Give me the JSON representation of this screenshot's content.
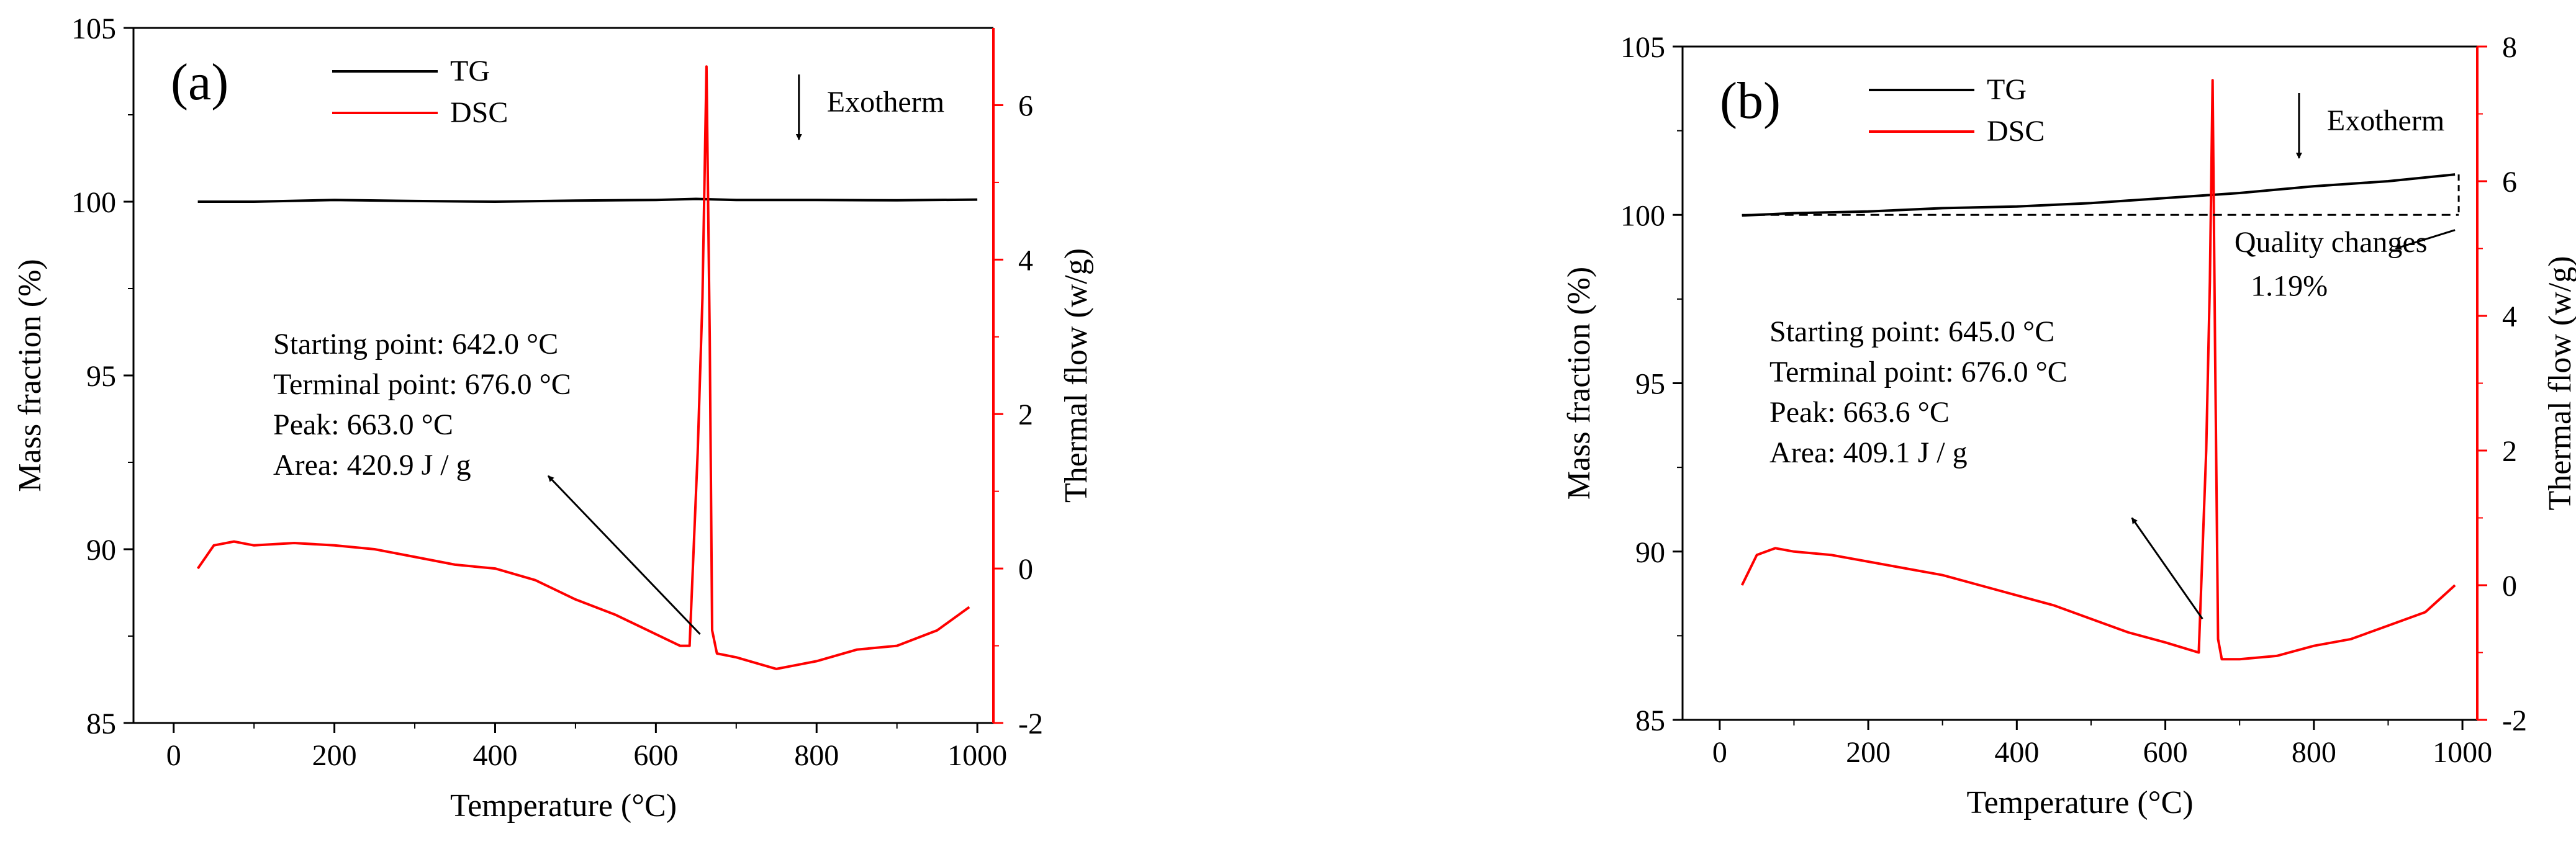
{
  "colors": {
    "tg": "#000000",
    "dsc": "#ff0000",
    "axis": "#000000"
  },
  "chart_data": [
    {
      "type": "line",
      "panel_label": "(a)",
      "xlabel": "Temperature (°C)",
      "ylabel_left": "Mass fraction (%)",
      "ylabel_right": "Thermal flow (w/g)",
      "xlim": [
        -50,
        1020
      ],
      "ylim_left": [
        85,
        105
      ],
      "ylim_right": [
        -2,
        7
      ],
      "xticks": [
        0,
        200,
        400,
        600,
        800,
        1000
      ],
      "yticks_left": [
        85,
        90,
        95,
        100,
        105
      ],
      "yticks_right": [
        -2,
        0,
        2,
        4,
        6
      ],
      "legend": [
        "TG",
        "DSC"
      ],
      "exotherm_label": "Exotherm",
      "annotation": [
        "Starting point: 642.0 °C",
        "Terminal point: 676.0 °C",
        "Peak: 663.0 °C",
        "Area: 420.9 J / g"
      ],
      "series": [
        {
          "name": "TG",
          "axis": "left",
          "x": [
            30,
            100,
            200,
            300,
            400,
            500,
            600,
            650,
            700,
            800,
            900,
            1000
          ],
          "y": [
            100.0,
            100.0,
            100.05,
            100.02,
            100.0,
            100.03,
            100.05,
            100.08,
            100.05,
            100.05,
            100.04,
            100.06
          ]
        },
        {
          "name": "DSC",
          "axis": "right",
          "x": [
            30,
            50,
            75,
            100,
            150,
            200,
            250,
            300,
            350,
            400,
            450,
            500,
            550,
            600,
            630,
            642,
            652,
            658,
            663,
            667,
            670,
            676,
            700,
            750,
            800,
            850,
            900,
            950,
            990
          ],
          "y": [
            0.0,
            0.3,
            0.35,
            0.3,
            0.33,
            0.3,
            0.25,
            0.15,
            0.05,
            0.0,
            -0.15,
            -0.4,
            -0.6,
            -0.85,
            -1.0,
            -1.0,
            1.5,
            3.5,
            6.5,
            3.0,
            -0.8,
            -1.1,
            -1.15,
            -1.3,
            -1.2,
            -1.05,
            -1.0,
            -0.8,
            -0.5
          ]
        }
      ]
    },
    {
      "type": "line",
      "panel_label": "(b)",
      "xlabel": "Temperature (°C)",
      "ylabel_left": "Mass fraction (%)",
      "ylabel_right": "Thermal flow (w/g)",
      "xlim": [
        -50,
        1020
      ],
      "ylim_left": [
        85,
        105
      ],
      "ylim_right": [
        -2,
        8
      ],
      "xticks": [
        0,
        200,
        400,
        600,
        800,
        1000
      ],
      "yticks_left": [
        85,
        90,
        95,
        100,
        105
      ],
      "yticks_right": [
        -2,
        0,
        2,
        4,
        6,
        8
      ],
      "legend": [
        "TG",
        "DSC"
      ],
      "exotherm_label": "Exotherm",
      "quality_label": [
        "Quality changes",
        "1.19%"
      ],
      "annotation": [
        "Starting point: 645.0 °C",
        "Terminal point: 676.0 °C",
        "Peak: 663.6 °C",
        "Area: 409.1 J / g"
      ],
      "series": [
        {
          "name": "TG",
          "axis": "left",
          "x": [
            30,
            100,
            200,
            300,
            400,
            500,
            600,
            700,
            800,
            900,
            990
          ],
          "y": [
            99.98,
            100.05,
            100.1,
            100.2,
            100.25,
            100.35,
            100.5,
            100.65,
            100.85,
            101.0,
            101.2
          ]
        },
        {
          "name": "DSC",
          "axis": "right",
          "x": [
            30,
            50,
            75,
            100,
            150,
            200,
            250,
            300,
            350,
            400,
            450,
            500,
            550,
            600,
            630,
            645,
            655,
            660,
            663.6,
            667,
            671,
            676,
            700,
            750,
            800,
            850,
            900,
            950,
            990
          ],
          "y": [
            0.0,
            0.45,
            0.55,
            0.5,
            0.45,
            0.35,
            0.25,
            0.15,
            0.0,
            -0.15,
            -0.3,
            -0.5,
            -0.7,
            -0.85,
            -0.95,
            -1.0,
            2.0,
            4.5,
            7.5,
            3.5,
            -0.8,
            -1.1,
            -1.1,
            -1.05,
            -0.9,
            -0.8,
            -0.6,
            -0.4,
            0.0
          ]
        }
      ]
    }
  ]
}
